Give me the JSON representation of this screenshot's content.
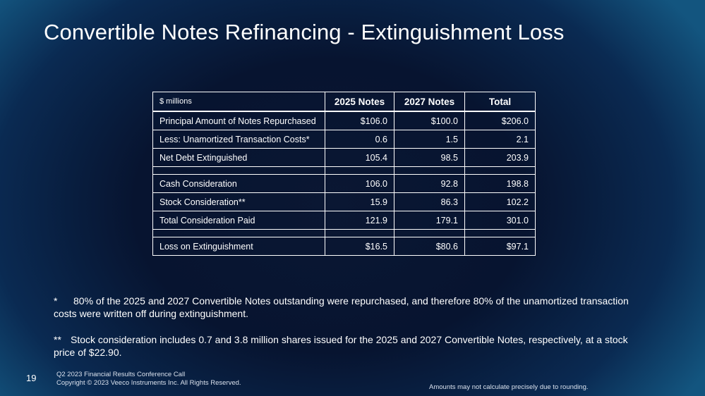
{
  "slide": {
    "title": "Convertible Notes Refinancing - Extinguishment Loss",
    "page_number": "19"
  },
  "table": {
    "units_label": "$ millions",
    "columns": [
      "2025 Notes",
      "2027 Notes",
      "Total"
    ],
    "rows": [
      {
        "label": "Principal Amount of Notes Repurchased",
        "values": [
          "$106.0",
          "$100.0",
          "$206.0"
        ]
      },
      {
        "label": "Less: Unamortized Transaction Costs*",
        "values": [
          "0.6",
          "1.5",
          "2.1"
        ]
      },
      {
        "label": "Net Debt Extinguished",
        "values": [
          "105.4",
          "98.5",
          "203.9"
        ]
      },
      {
        "label": "Cash Consideration",
        "values": [
          "106.0",
          "92.8",
          "198.8"
        ]
      },
      {
        "label": "Stock Consideration**",
        "values": [
          "15.9",
          "86.3",
          "102.2"
        ]
      },
      {
        "label": "Total Consideration Paid",
        "values": [
          "121.9",
          "179.1",
          "301.0"
        ]
      },
      {
        "label": "Loss on Extinguishment",
        "values": [
          "$16.5",
          "$80.6",
          "$97.1"
        ]
      }
    ]
  },
  "footnotes": [
    {
      "marker": "*",
      "text": "80% of the 2025 and 2027 Convertible Notes outstanding were repurchased, and therefore 80% of the unamortized transaction costs were written off during extinguishment."
    },
    {
      "marker": "**",
      "text": "Stock consideration includes 0.7 and 3.8 million shares issued for the 2025 and 2027 Convertible Notes, respectively, at a stock price of $22.90."
    }
  ],
  "footer": {
    "line1": "Q2 2023 Financial Results Conference Call",
    "line2": "Copyright © 2023 Veeco Instruments Inc. All Rights Reserved.",
    "rounding_note": "Amounts may not calculate precisely due to rounding."
  }
}
